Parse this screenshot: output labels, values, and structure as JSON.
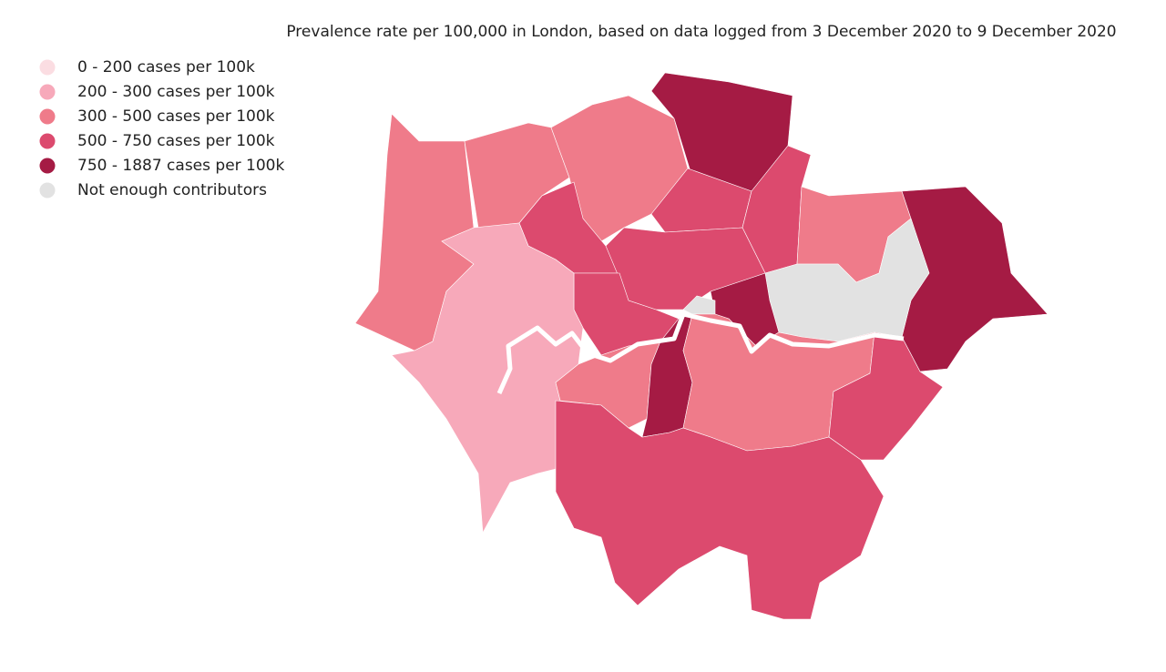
{
  "title": "Prevalence rate per 100,000 in London, based on data logged from 3 December 2020 to 9 December 2020",
  "legend": [
    {
      "label": "0 - 200 cases per 100k",
      "color": "#fbdde2"
    },
    {
      "label": "200 - 300 cases per 100k",
      "color": "#f7a9ba"
    },
    {
      "label": "300 - 500 cases per 100k",
      "color": "#ef7b8a"
    },
    {
      "label": "500 - 750 cases per 100k",
      "color": "#dc4a6e"
    },
    {
      "label": "750 - 1887 cases per 100k",
      "color": "#a51b44"
    },
    {
      "label": "Not enough contributors",
      "color": "#e2e2e2"
    }
  ]
}
